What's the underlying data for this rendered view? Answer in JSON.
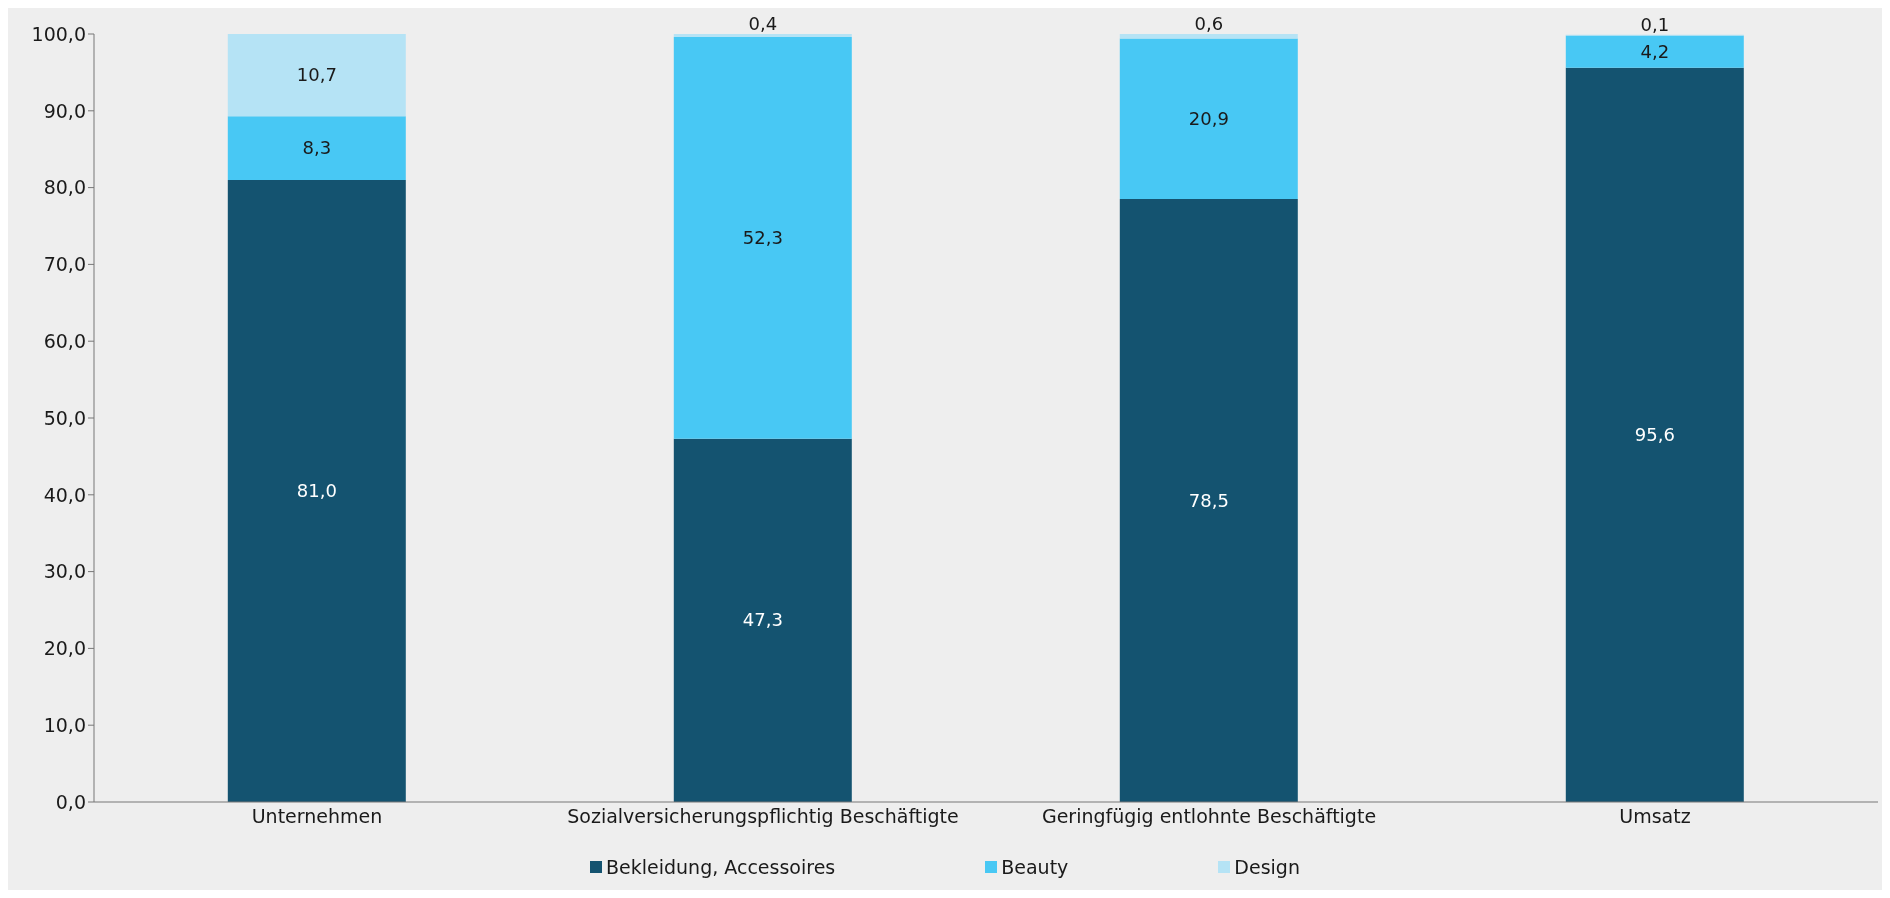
{
  "chart_data": {
    "type": "bar",
    "stacked": true,
    "categories": [
      "Unternehmen",
      "Sozialversicherungspflichtig Beschäftigte",
      "Geringfügig entlohnte Beschäftigte",
      "Umsatz"
    ],
    "series": [
      {
        "name": "Bekleidung, Accessoires",
        "color": "#145370",
        "values": [
          81.0,
          47.3,
          78.5,
          95.6
        ],
        "value_labels": [
          "81,0",
          "47,3",
          "78,5",
          "95,6"
        ]
      },
      {
        "name": "Beauty",
        "color": "#48c8f4",
        "values": [
          8.3,
          52.3,
          20.9,
          4.2
        ],
        "value_labels": [
          "8,3",
          "52,3",
          "20,9",
          "4,2"
        ]
      },
      {
        "name": "Design",
        "color": "#b5e3f5",
        "values": [
          10.7,
          0.4,
          0.6,
          0.1
        ],
        "value_labels": [
          "10,7",
          "0,4",
          "0,6",
          "0,1"
        ]
      }
    ],
    "ylim": [
      0,
      100
    ],
    "yticks": [
      {
        "value": 0,
        "label": "0,0"
      },
      {
        "value": 10,
        "label": "10,0"
      },
      {
        "value": 20,
        "label": "20,0"
      },
      {
        "value": 30,
        "label": "30,0"
      },
      {
        "value": 40,
        "label": "40,0"
      },
      {
        "value": 50,
        "label": "50,0"
      },
      {
        "value": 60,
        "label": "60,0"
      },
      {
        "value": 70,
        "label": "70,0"
      },
      {
        "value": 80,
        "label": "80,0"
      },
      {
        "value": 90,
        "label": "90,0"
      },
      {
        "value": 100,
        "label": "100,0"
      }
    ],
    "grid": false,
    "legend": "bottom"
  }
}
